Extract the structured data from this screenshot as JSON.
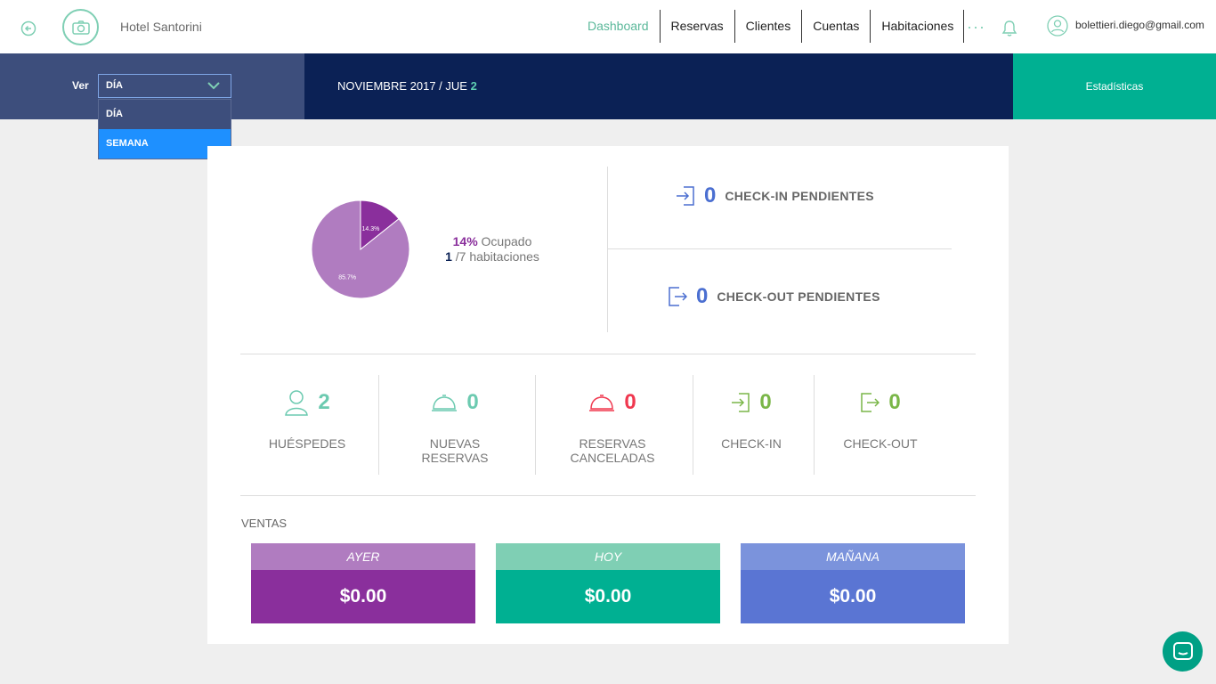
{
  "header": {
    "hotel_name": "Hotel Santorini",
    "nav": [
      "Dashboard",
      "Reservas",
      "Clientes",
      "Cuentas",
      "Habitaciones"
    ],
    "more": "···",
    "user_email": "bolettieri.diego@gmail.com"
  },
  "band": {
    "ver_label": "Ver",
    "selected": "DÍA",
    "options": [
      "DÍA",
      "SEMANA"
    ],
    "date_prefix": "NOVIEMBRE 2017 / JUE ",
    "date_day": "2",
    "stats_button": "Estadísticas"
  },
  "occupancy": {
    "pie_slices": [
      {
        "label": "14.3%",
        "value": 14.3,
        "color": "#8a2f9c"
      },
      {
        "label": "85.7%",
        "value": 85.7,
        "color": "#b07cc0"
      }
    ],
    "percent": "14%",
    "percent_label": " Ocupado",
    "rooms_count": "1",
    "rooms_label": " /7 habitaciones"
  },
  "pending": {
    "checkin_count": "0",
    "checkin_label": "CHECK-IN PENDIENTES",
    "checkout_count": "0",
    "checkout_label": "CHECK-OUT PENDIENTES"
  },
  "stats": [
    {
      "count": "2",
      "label": "HUÉSPEDES",
      "color": "#6ccab0"
    },
    {
      "count": "0",
      "label": "NUEVAS RESERVAS",
      "color": "#6ccab0"
    },
    {
      "count": "0",
      "label": "RESERVAS CANCELADAS",
      "color": "#f0384f"
    },
    {
      "count": "0",
      "label": "CHECK-IN",
      "color": "#7ab648"
    },
    {
      "count": "0",
      "label": "CHECK-OUT",
      "color": "#7ab648"
    }
  ],
  "ventas": {
    "title": "VENTAS",
    "cards": [
      {
        "label": "AYER",
        "value": "$0.00",
        "head_color": "#b07cc0",
        "body_color": "#8a2f9c"
      },
      {
        "label": "HOY",
        "value": "$0.00",
        "head_color": "#7fcfb4",
        "body_color": "#00b092"
      },
      {
        "label": "MAÑANA",
        "value": "$0.00",
        "head_color": "#7b93dc",
        "body_color": "#5a75d3"
      }
    ]
  }
}
